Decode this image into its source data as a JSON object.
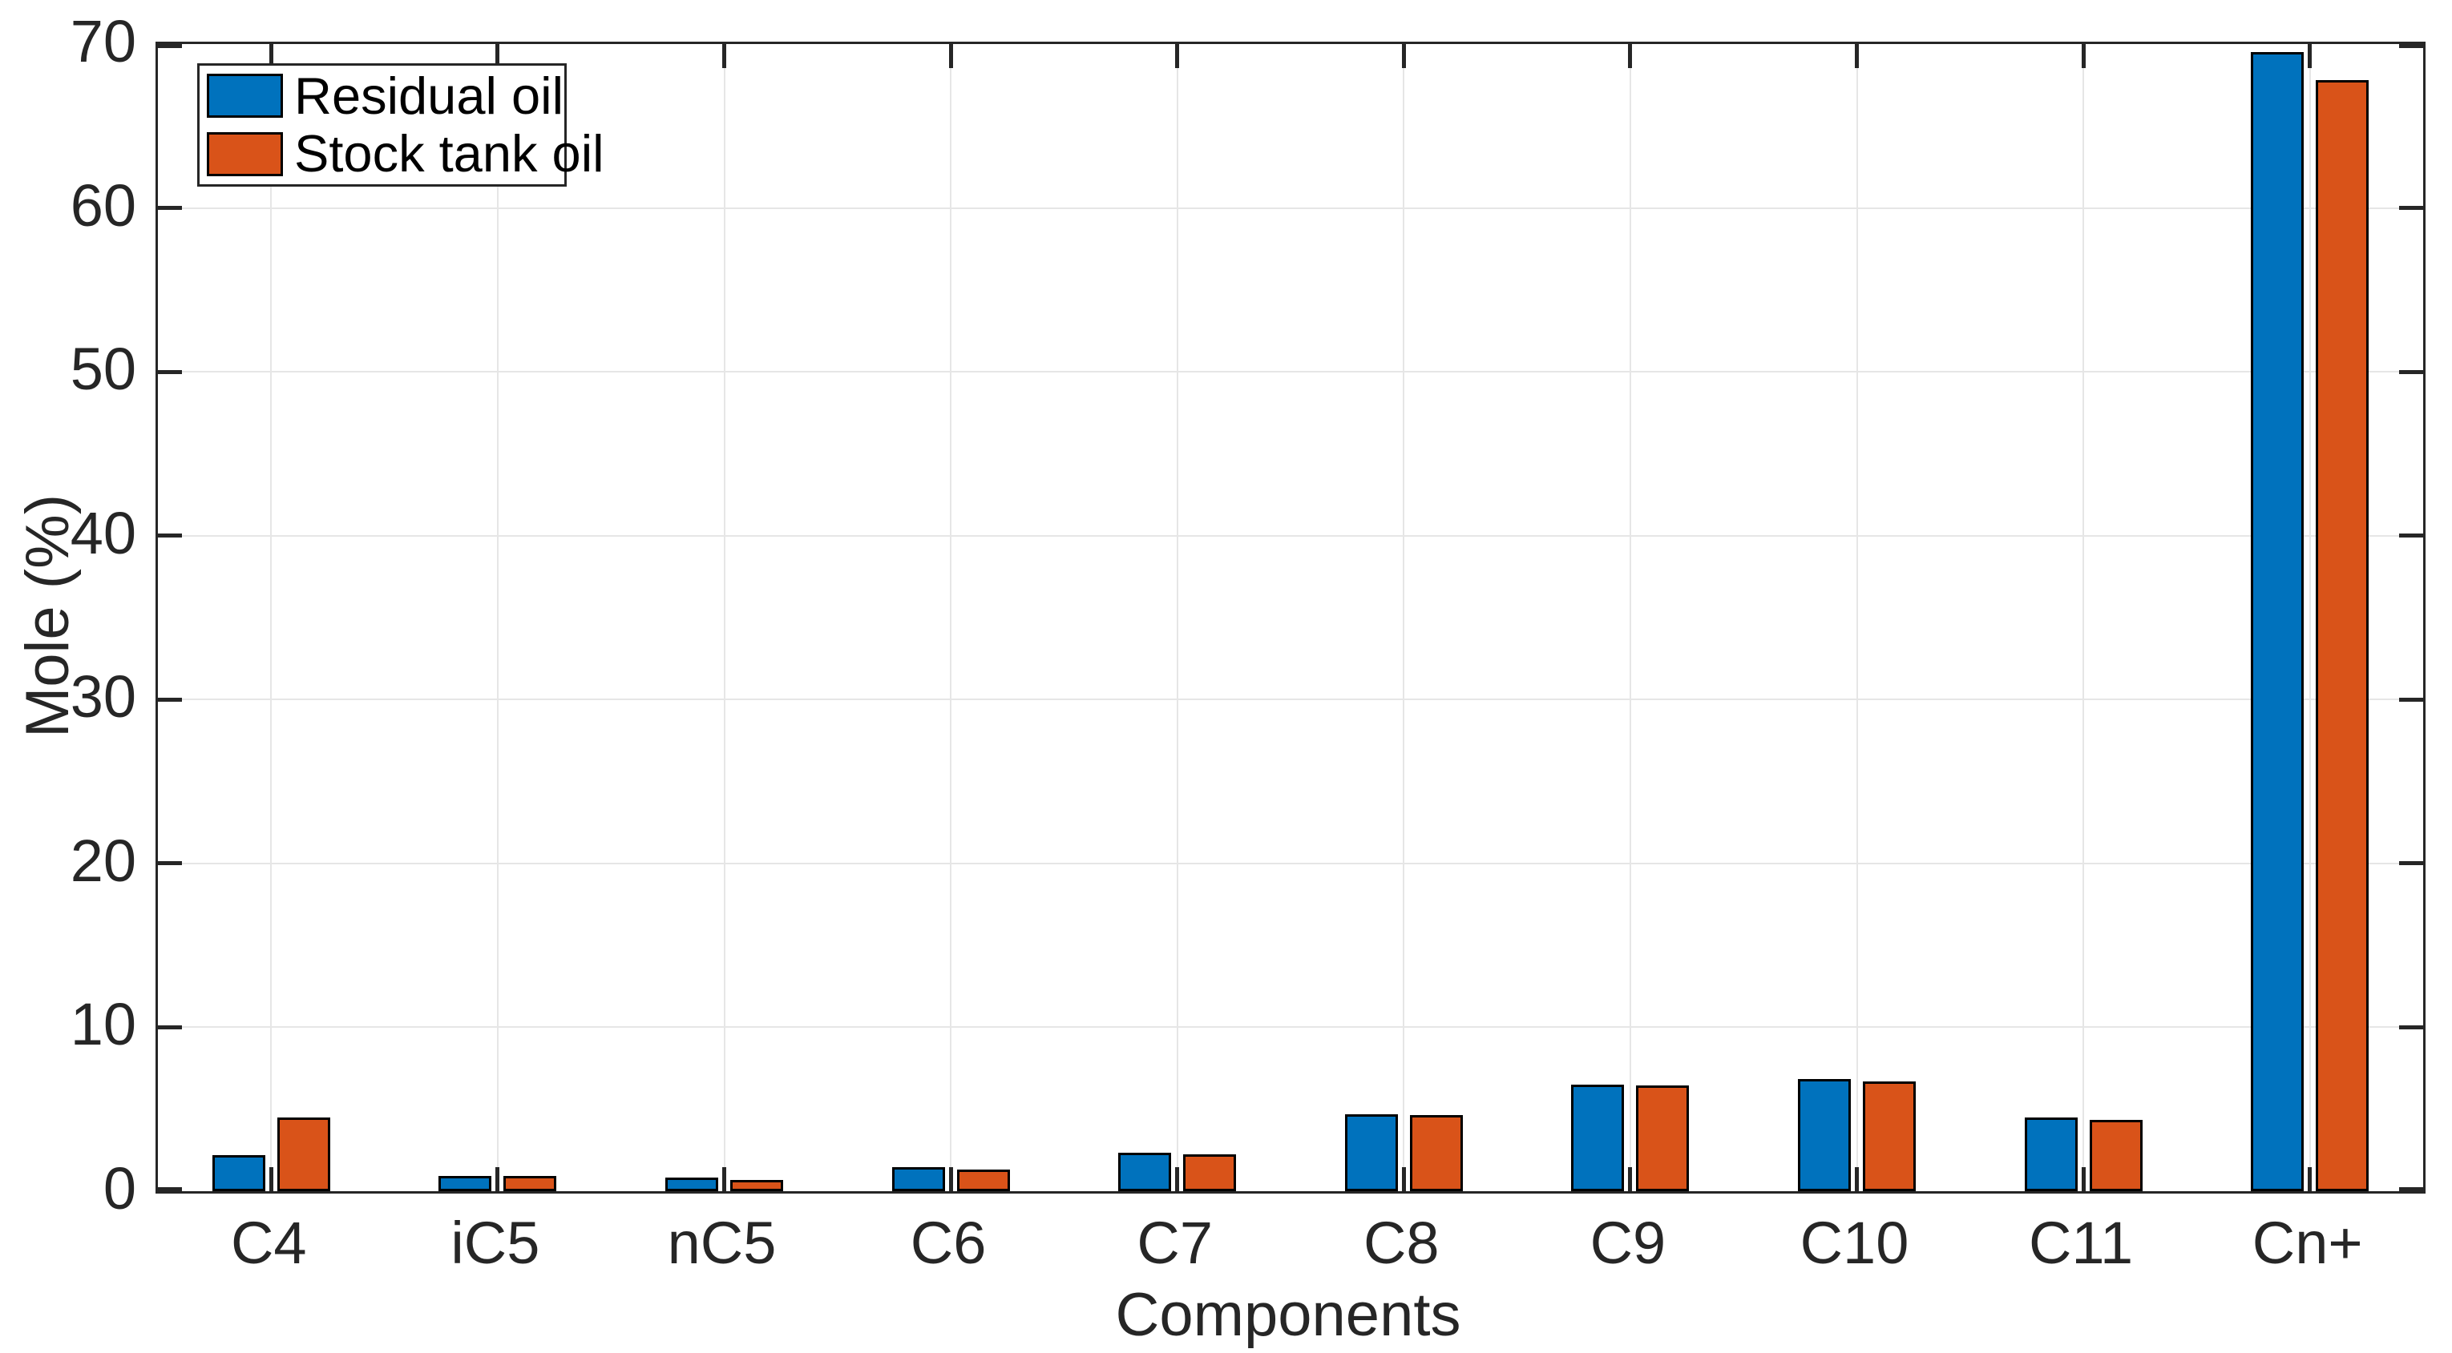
{
  "chart_data": {
    "type": "bar",
    "title": "",
    "xlabel": "Components",
    "ylabel": "Mole (%)",
    "categories": [
      "C4",
      "iC5",
      "nC5",
      "C6",
      "C7",
      "C8",
      "C9",
      "C10",
      "C11",
      "Cn+"
    ],
    "series": [
      {
        "name": "Residual oil",
        "color": "#0072BD",
        "values": [
          2.2,
          0.95,
          0.85,
          1.45,
          2.35,
          4.7,
          6.5,
          6.85,
          4.5,
          69.5
        ]
      },
      {
        "name": "Stock tank oil",
        "color": "#D95319",
        "values": [
          4.5,
          0.95,
          0.7,
          1.3,
          2.25,
          4.65,
          6.45,
          6.7,
          4.35,
          67.8
        ]
      }
    ],
    "ylim": [
      0,
      70
    ],
    "yticks": [
      0,
      10,
      20,
      30,
      40,
      50,
      60,
      70
    ],
    "grid": true,
    "legend_position": "top-left",
    "bar_edge_color": "#000000"
  },
  "theme": {
    "axis_color": "#262626",
    "grid_color": "#E6E6E6",
    "background": "#FFFFFF",
    "text_color": "#262626"
  }
}
